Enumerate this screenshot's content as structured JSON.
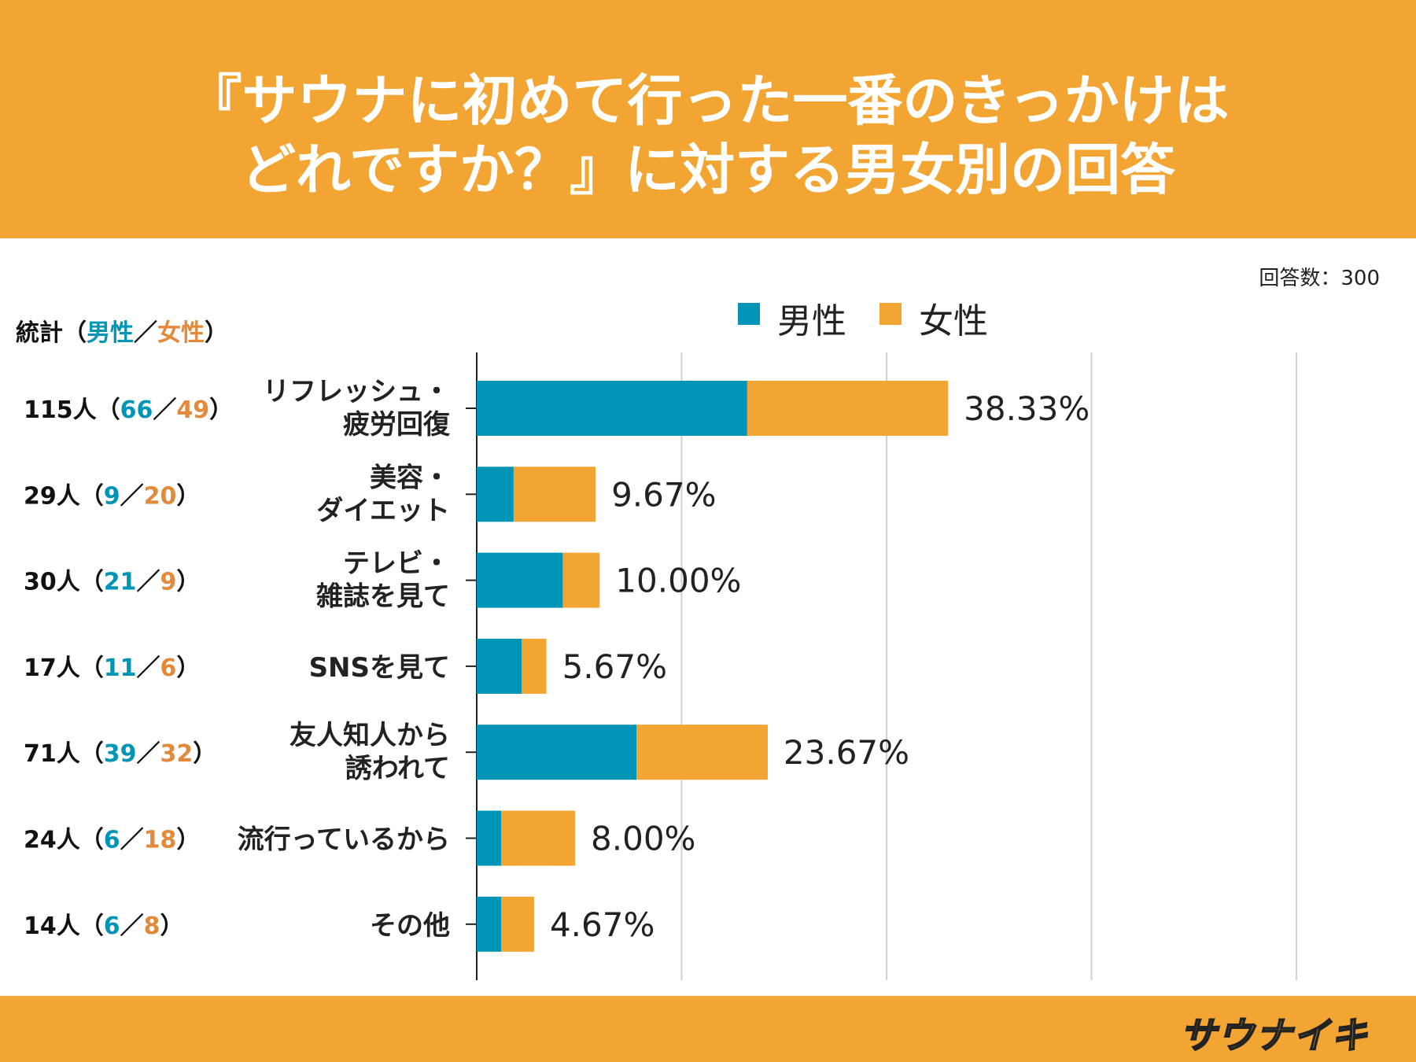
{
  "title": {
    "line1": "『サウナに初めて行った一番のきっかけは",
    "line2": "どれですか？』に対する男女別の回答"
  },
  "response_count": "回答数：300",
  "stats_header": {
    "prefix": "統計（",
    "male": "男性",
    "sep": "／",
    "female": "女性",
    "suffix": "）"
  },
  "legend": {
    "male": "男性",
    "female": "女性"
  },
  "colors": {
    "male": "#0095b6",
    "female": "#f2a533",
    "header": "#f2a533"
  },
  "logo_text": "サウナイキ",
  "chart_data": {
    "type": "bar",
    "orientation": "horizontal",
    "stacked": true,
    "total_respondents": 300,
    "categories": [
      [
        "リフレッシュ・",
        "疲労回復"
      ],
      [
        "美容・",
        "ダイエット"
      ],
      [
        "テレビ・",
        "雑誌を見て"
      ],
      [
        "SNSを見て"
      ],
      [
        "友人知人から",
        "誘われて"
      ],
      [
        "流行っているから"
      ],
      [
        "その他"
      ]
    ],
    "series": [
      {
        "name": "男性",
        "values": [
          66,
          9,
          21,
          11,
          39,
          6,
          6
        ]
      },
      {
        "name": "女性",
        "values": [
          49,
          20,
          9,
          6,
          32,
          18,
          8
        ]
      }
    ],
    "totals": [
      115,
      29,
      30,
      17,
      71,
      24,
      14
    ],
    "total_labels": [
      "115人",
      "29人",
      "30人",
      "17人",
      "71人",
      "24人",
      "14人"
    ],
    "percent_labels": [
      "38.33%",
      "9.67%",
      "10.00%",
      "5.67%",
      "23.67%",
      "8.00%",
      "4.67%"
    ],
    "xlim": [
      0,
      200
    ],
    "gridlines": [
      50,
      100,
      150,
      200
    ],
    "legend": [
      "男性",
      "女性"
    ]
  }
}
